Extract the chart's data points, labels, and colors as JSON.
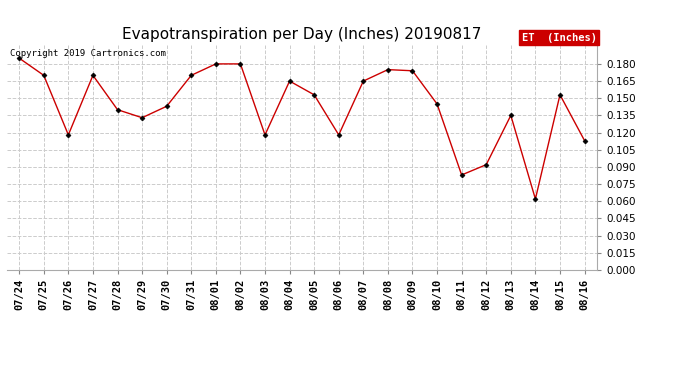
{
  "title": "Evapotranspiration per Day (Inches) 20190817",
  "copyright": "Copyright 2019 Cartronics.com",
  "legend_label": "ET  (Inches)",
  "x_labels": [
    "07/24",
    "07/25",
    "07/26",
    "07/27",
    "07/28",
    "07/29",
    "07/30",
    "07/31",
    "08/01",
    "08/02",
    "08/03",
    "08/04",
    "08/05",
    "08/06",
    "08/07",
    "08/08",
    "08/09",
    "08/10",
    "08/11",
    "08/12",
    "08/13",
    "08/14",
    "08/15",
    "08/16"
  ],
  "y_values": [
    0.185,
    0.17,
    0.118,
    0.17,
    0.14,
    0.133,
    0.143,
    0.17,
    0.18,
    0.18,
    0.118,
    0.165,
    0.153,
    0.118,
    0.165,
    0.175,
    0.174,
    0.145,
    0.083,
    0.092,
    0.135,
    0.062,
    0.153,
    0.113
  ],
  "line_color": "#cc0000",
  "marker": "D",
  "marker_size": 2.5,
  "marker_color": "#000000",
  "background_color": "#ffffff",
  "grid_color": "#cccccc",
  "ylim": [
    0.0,
    0.1965
  ],
  "yticks": [
    0.0,
    0.015,
    0.03,
    0.045,
    0.06,
    0.075,
    0.09,
    0.105,
    0.12,
    0.135,
    0.15,
    0.165,
    0.18
  ],
  "legend_bg": "#cc0000",
  "legend_text_color": "#ffffff",
  "title_fontsize": 11,
  "copyright_fontsize": 6.5,
  "tick_fontsize": 7.5
}
